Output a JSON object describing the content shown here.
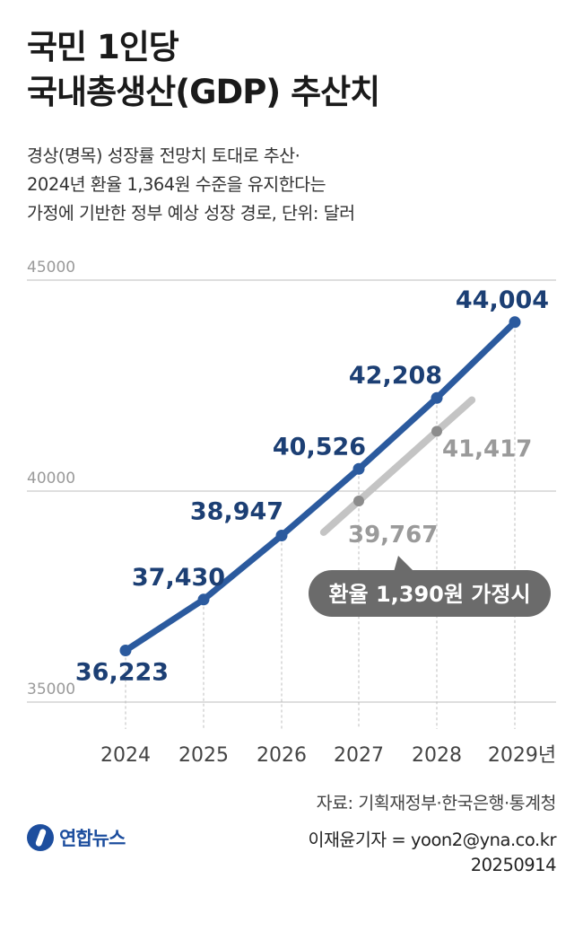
{
  "title_lines": [
    "국민 1인당",
    "국내총생산(GDP) 추산치"
  ],
  "subtitle_lines": [
    "경상(명목) 성장률 전망치 토대로 추산·",
    "2024년 환율 1,364원 수준을 유지한다는",
    "가정에 기반한 정부 예상 성장 경로, 단위: 달러"
  ],
  "colors": {
    "main_line": "#2b5a9e",
    "main_label": "#1c3f74",
    "alt_line": "#c4c4c4",
    "alt_label": "#9a9a9a",
    "alt_point": "#8c8c8c",
    "callout_bg": "#6b6b6b",
    "grid": "#bdbdbd"
  },
  "chart_data": {
    "type": "line",
    "x": [
      "2024",
      "2025",
      "2026",
      "2027",
      "2028",
      "2029년"
    ],
    "ylim": [
      35000,
      45000
    ],
    "yticks": [
      "35000",
      "40000",
      "45000"
    ],
    "series": [
      {
        "values": [
          36223,
          37430,
          38947,
          40526,
          42208,
          44004
        ],
        "labels": [
          "36,223",
          "37,430",
          "38,947",
          "40,526",
          "42,208",
          "44,004"
        ]
      },
      {
        "values": [
          null,
          null,
          null,
          39767,
          41417,
          null
        ],
        "labels": [
          "",
          "",
          "",
          "39,767",
          "41,417",
          ""
        ]
      }
    ],
    "callout": "환율 1,390원 가정시",
    "grid": true
  },
  "source": "자료: 기획재정부·한국은행·통계청",
  "credits": [
    "이재윤기자 = yoon2@yna.co.kr",
    "20250914"
  ],
  "logo": {
    "text": "연합뉴스",
    "icon": "yonhap-logo-icon"
  }
}
